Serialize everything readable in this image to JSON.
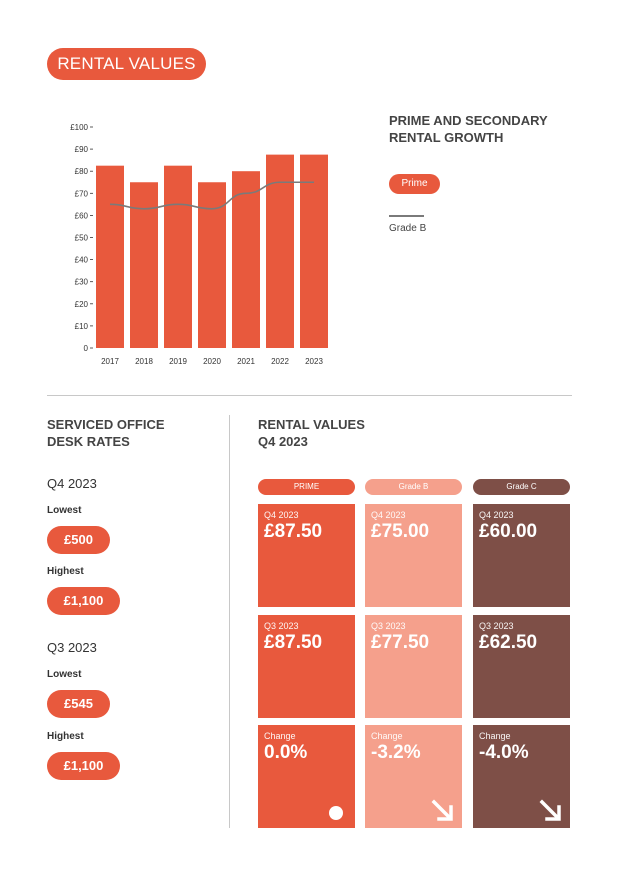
{
  "header": {
    "title": "RENTAL VALUES"
  },
  "chart_data": {
    "type": "bar",
    "title": "PRIME AND SECONDARY RENTAL GROWTH",
    "categories": [
      "2017",
      "2018",
      "2019",
      "2020",
      "2021",
      "2022",
      "2023"
    ],
    "series": [
      {
        "name": "Prime",
        "type": "bar",
        "color": "#e8593d",
        "values": [
          82.5,
          75,
          82.5,
          75,
          80,
          87.5,
          87.5
        ]
      },
      {
        "name": "Grade B",
        "type": "line",
        "color": "#7a7a7a",
        "values": [
          65,
          63,
          65,
          63,
          70,
          75,
          75
        ]
      }
    ],
    "yticks": [
      "£100",
      "£90",
      "£80",
      "£70",
      "£60",
      "£50",
      "£40",
      "£30",
      "£20",
      "£10",
      "0"
    ],
    "ylim": [
      0,
      100
    ],
    "grid": false,
    "legend": "right"
  },
  "legend": {
    "prime": "Prime",
    "grade_b": "Grade B"
  },
  "serviced": {
    "title_line1": "SERVICED OFFICE",
    "title_line2": "DESK RATES",
    "q4": {
      "quarter": "Q4 2023",
      "lowest_label": "Lowest",
      "lowest": "£500",
      "highest_label": "Highest",
      "highest": "£1,100"
    },
    "q3": {
      "quarter": "Q3 2023",
      "lowest_label": "Lowest",
      "lowest": "£545",
      "highest_label": "Highest",
      "highest": "£1,100"
    }
  },
  "rental_q4": {
    "title_line1": "RENTAL VALUES",
    "title_line2": "Q4 2023",
    "columns": [
      {
        "header": "PRIME",
        "q4_label": "Q4 2023",
        "q4_value": "£87.50",
        "q3_label": "Q3 2023",
        "q3_value": "£87.50",
        "change_label": "Change",
        "change_value": "0.0%",
        "trend_icon": "dot-icon"
      },
      {
        "header": "Grade B",
        "q4_label": "Q4 2023",
        "q4_value": "£75.00",
        "q3_label": "Q3 2023",
        "q3_value": "£77.50",
        "change_label": "Change",
        "change_value": "-3.2%",
        "trend_icon": "arrow-down-right-icon"
      },
      {
        "header": "Grade C",
        "q4_label": "Q4 2023",
        "q4_value": "£60.00",
        "q3_label": "Q3 2023",
        "q3_value": "£62.50",
        "change_label": "Change",
        "change_value": "-4.0%",
        "trend_icon": "arrow-down-right-icon"
      }
    ]
  },
  "colors": {
    "prime": "#e8593d",
    "grade_b": "#f5a08c",
    "grade_c": "#7e4f47",
    "line": "#7a7a7a"
  }
}
